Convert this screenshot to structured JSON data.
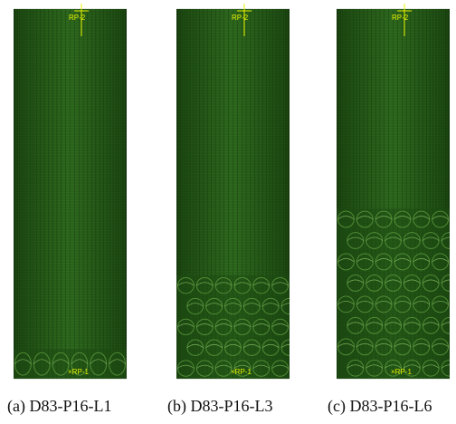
{
  "figure": {
    "panels": [
      {
        "caption": "(a) D83-P16-L1",
        "top_point_label": "RP-2",
        "bottom_point_label": "RP-1",
        "buckled_fraction": 0.08
      },
      {
        "caption": "(b) D83-P16-L3",
        "top_point_label": "RP-2",
        "bottom_point_label": "RP-1",
        "buckled_fraction": 0.28
      },
      {
        "caption": "(c) D83-P16-L6",
        "top_point_label": "RP-2",
        "bottom_point_label": "RP-1",
        "buckled_fraction": 0.46
      }
    ],
    "colors": {
      "mesh_fill": "#2f6b1f",
      "mesh_dark": "#1d4a12",
      "mesh_line": "#0f2a08",
      "label": "#e6f000"
    }
  }
}
